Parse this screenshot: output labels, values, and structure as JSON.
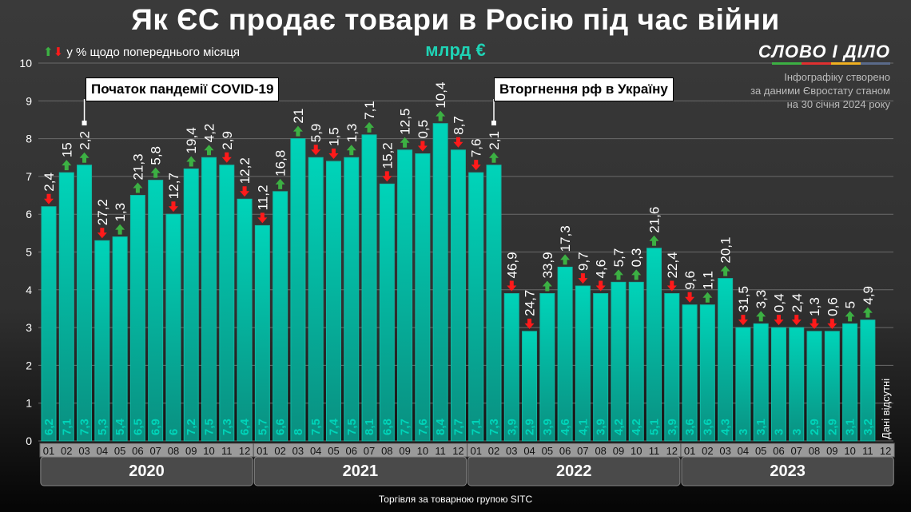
{
  "title": "Як ЄС продає товари в Росію під час війни",
  "unit": "млрд €",
  "legend": {
    "up_icon": "arrow-up-icon",
    "down_icon": "arrow-down-icon",
    "text": "у % щодо попереднього місяця"
  },
  "logo": "СЛОВО І ДІЛО",
  "source": [
    "Інфографіку створено",
    "за даними Євростату станом",
    "на 30 січня 2024 року"
  ],
  "annotations": [
    {
      "text": "Початок пандемії COVID-19",
      "year": "2020",
      "month": "03"
    },
    {
      "text": "Вторгнення рф в Україну",
      "year": "2022",
      "month": "02"
    }
  ],
  "caption": "Торгівля за товарною групою SITC",
  "colors": {
    "bar": "#00d4b9",
    "up": "#3cb043",
    "down": "#ff1a1a",
    "background": "#2e2e2e"
  },
  "chart_data": {
    "type": "bar",
    "ylim": [
      0,
      10
    ],
    "yticks": [
      0,
      1,
      2,
      3,
      4,
      5,
      6,
      7,
      8,
      9,
      10
    ],
    "grid": true,
    "years": [
      "2020",
      "2021",
      "2022",
      "2023"
    ],
    "months": [
      "01",
      "02",
      "03",
      "04",
      "05",
      "06",
      "07",
      "08",
      "09",
      "10",
      "11",
      "12"
    ],
    "values": [
      [
        6.2,
        7.1,
        7.3,
        5.3,
        5.4,
        6.5,
        6.9,
        6,
        7.2,
        7.5,
        7.3,
        6.4
      ],
      [
        5.7,
        6.6,
        8,
        7.5,
        7.4,
        7.5,
        8.1,
        6.8,
        7.7,
        7.6,
        8.4,
        7.7
      ],
      [
        7.1,
        7.3,
        3.9,
        2.9,
        3.9,
        4.6,
        4.1,
        3.9,
        4.2,
        4.2,
        5.1,
        3.9
      ],
      [
        3.6,
        3.6,
        4.3,
        3,
        3.1,
        3,
        3,
        2.9,
        2.9,
        3.1,
        3.2,
        null
      ]
    ],
    "pct_change": [
      [
        -2.4,
        15,
        2.2,
        -27.2,
        1.3,
        21.3,
        5.8,
        -12.7,
        19.4,
        4.2,
        -2.9,
        -12.2
      ],
      [
        -11.2,
        16.8,
        21,
        -5.9,
        -1.5,
        1.3,
        7.1,
        -15.2,
        12.5,
        -0.5,
        10.4,
        -8.7
      ],
      [
        -7.6,
        2.1,
        -46.9,
        -24.7,
        33.9,
        17.3,
        -9.7,
        -4.6,
        5.7,
        0.3,
        21.6,
        -22.4
      ],
      [
        -9.6,
        1.1,
        20.1,
        -31.5,
        3.3,
        -0.4,
        -2.4,
        -1.3,
        -0.6,
        5,
        4.9,
        null
      ]
    ],
    "missing_label": "Дані відсутні"
  }
}
